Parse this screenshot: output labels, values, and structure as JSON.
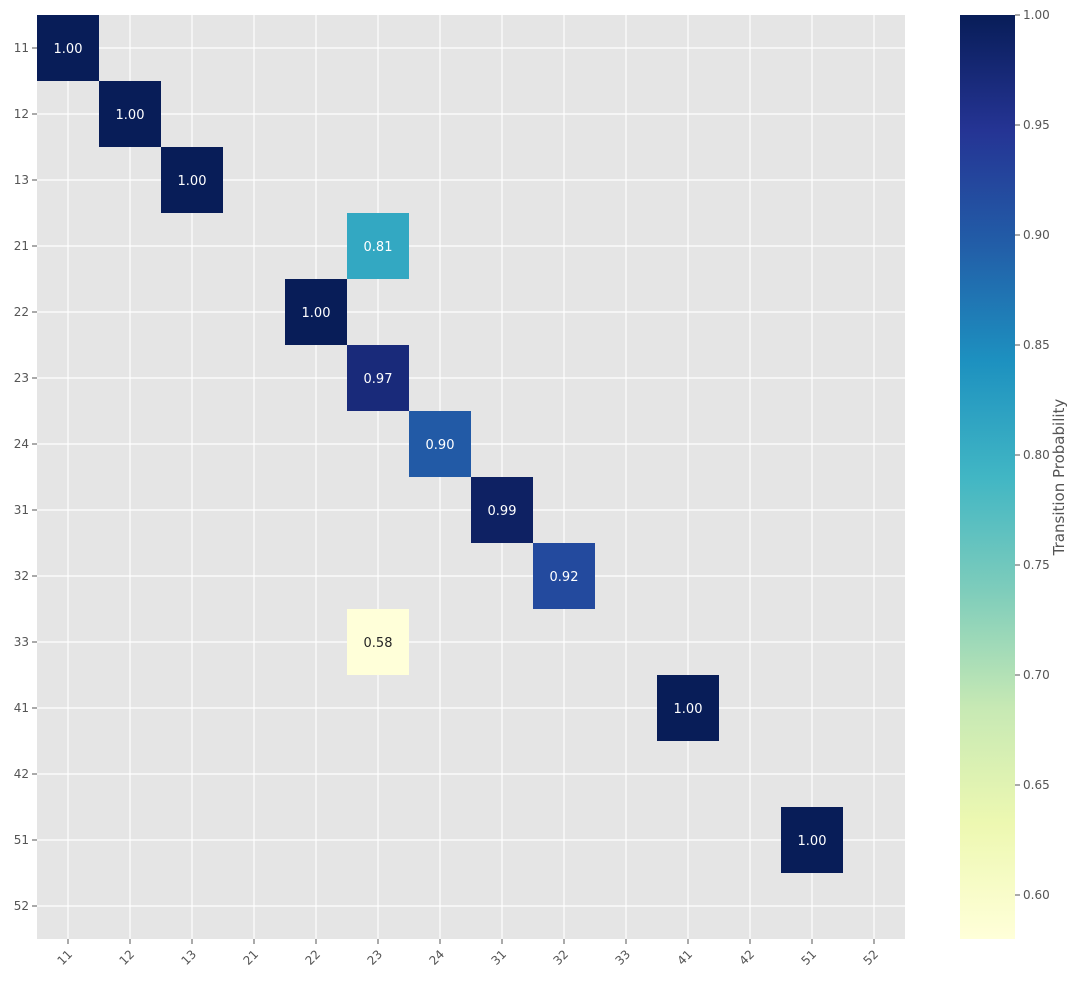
{
  "chart_data": {
    "type": "heatmap",
    "title": "",
    "xlabel": "",
    "ylabel": "",
    "x_categories": [
      "11",
      "12",
      "13",
      "21",
      "22",
      "23",
      "24",
      "31",
      "32",
      "33",
      "41",
      "42",
      "51",
      "52"
    ],
    "y_categories": [
      "11",
      "12",
      "13",
      "21",
      "22",
      "23",
      "24",
      "31",
      "32",
      "33",
      "41",
      "42",
      "51",
      "52"
    ],
    "cells": [
      {
        "row": "11",
        "col": "11",
        "value": 1.0,
        "label": "1.00"
      },
      {
        "row": "12",
        "col": "12",
        "value": 1.0,
        "label": "1.00"
      },
      {
        "row": "13",
        "col": "13",
        "value": 1.0,
        "label": "1.00"
      },
      {
        "row": "21",
        "col": "23",
        "value": 0.81,
        "label": "0.81"
      },
      {
        "row": "22",
        "col": "22",
        "value": 1.0,
        "label": "1.00"
      },
      {
        "row": "23",
        "col": "23",
        "value": 0.97,
        "label": "0.97"
      },
      {
        "row": "24",
        "col": "24",
        "value": 0.9,
        "label": "0.90"
      },
      {
        "row": "31",
        "col": "31",
        "value": 0.99,
        "label": "0.99"
      },
      {
        "row": "32",
        "col": "32",
        "value": 0.92,
        "label": "0.92"
      },
      {
        "row": "33",
        "col": "23",
        "value": 0.58,
        "label": "0.58"
      },
      {
        "row": "41",
        "col": "41",
        "value": 1.0,
        "label": "1.00"
      },
      {
        "row": "51",
        "col": "51",
        "value": 1.0,
        "label": "1.00"
      }
    ],
    "colorbar": {
      "label": "Transition Probability",
      "colormap": "YlGnBu",
      "range": [
        0.58,
        1.0
      ],
      "ticks": [
        "0.60",
        "0.65",
        "0.70",
        "0.75",
        "0.80",
        "0.85",
        "0.90",
        "0.95",
        "1.00"
      ]
    },
    "background_color": "#e5e5e5",
    "grid": true
  }
}
